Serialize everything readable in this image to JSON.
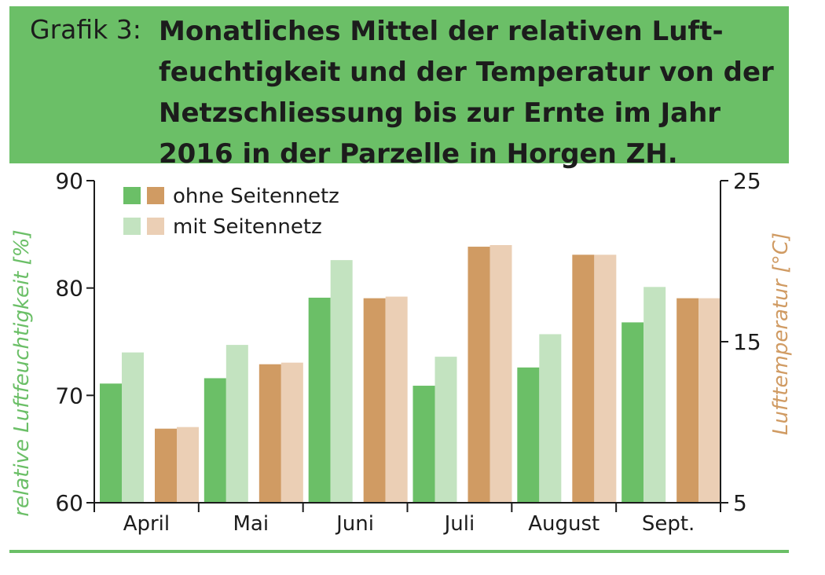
{
  "title": {
    "label": "Grafik 3:",
    "text": "Monatliches Mittel der relativen Luft-feuchtigkeit und der Temperatur von der Netzschliessung bis zur Ernte im Jahr 2016 in der Parzelle in Horgen ZH."
  },
  "colors": {
    "title_bg": "#6bbf67",
    "hum_ohne": "#6bbf67",
    "hum_mit": "#c3e3c0",
    "temp_ohne": "#d09b63",
    "temp_mit": "#ebcfb5",
    "axis": "#1c1c1c",
    "ylabel_left": "#6bbf67",
    "ylabel_right": "#d09b63",
    "bottom_rule": "#6bbf67"
  },
  "chart_data": {
    "type": "bar",
    "categories": [
      "April",
      "Mai",
      "Juni",
      "Juli",
      "August",
      "Sept."
    ],
    "y_left": {
      "label": "relative Luftfeuchtigkeit [%]",
      "range": [
        60,
        90
      ],
      "ticks": [
        60,
        70,
        80,
        90
      ]
    },
    "y_right": {
      "label": "Lufttemperatur [°C]",
      "range": [
        5,
        25
      ],
      "ticks": [
        5,
        15,
        25
      ]
    },
    "legend": {
      "ohne": "ohne Seitennetz",
      "mit": "mit Seitennetz",
      "position": "top-left"
    },
    "series": [
      {
        "name": "Luftfeuchtigkeit ohne Seitennetz",
        "axis": "left",
        "color_key": "hum_ohne",
        "values": [
          71.1,
          71.6,
          79.1,
          70.9,
          72.6,
          76.8
        ]
      },
      {
        "name": "Luftfeuchtigkeit mit Seitennetz",
        "axis": "left",
        "color_key": "hum_mit",
        "values": [
          74.0,
          74.7,
          82.6,
          73.6,
          75.7,
          80.1
        ]
      },
      {
        "name": "Temperatur ohne Seitennetz",
        "axis": "right",
        "color_key": "temp_ohne",
        "values": [
          9.6,
          13.6,
          17.7,
          20.9,
          20.4,
          17.7
        ]
      },
      {
        "name": "Temperatur mit Seitennetz",
        "axis": "right",
        "color_key": "temp_mit",
        "values": [
          9.7,
          13.7,
          17.8,
          21.0,
          20.4,
          17.7
        ]
      }
    ]
  }
}
